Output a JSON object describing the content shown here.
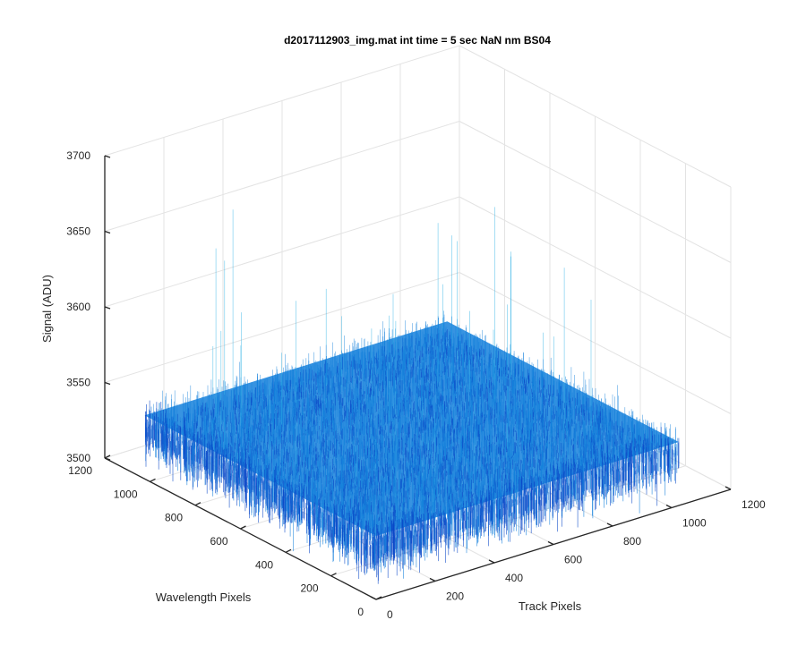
{
  "chart_data": {
    "type": "surface",
    "title": "d2017112903_img.mat int time = 5 sec  NaN nm BS04",
    "xlabel": "Track Pixels",
    "ylabel": "Wavelength Pixels",
    "zlabel": "Signal (ADU)",
    "xlim": [
      0,
      1200
    ],
    "ylim": [
      0,
      1200
    ],
    "zlim": [
      3500,
      3700
    ],
    "x_ticks": [
      "0",
      "200",
      "400",
      "600",
      "800",
      "1000",
      "1200"
    ],
    "y_ticks": [
      "0",
      "200",
      "400",
      "600",
      "800",
      "1000",
      "1200"
    ],
    "z_ticks": [
      "3500",
      "3550",
      "3600",
      "3650",
      "3700"
    ],
    "data_extent": {
      "x": [
        0,
        1024
      ],
      "y": [
        0,
        1024
      ]
    },
    "surface": {
      "mean_signal": 3542,
      "noise_sigma": 6,
      "min_signal": 3520,
      "max_signal": 3665,
      "colormap": "parula"
    },
    "grid": true,
    "colors": {
      "surface_dark": "#0a48c8",
      "surface_mid": "#1480dc",
      "surface_light": "#2cb0e6",
      "gridline": "#e3e3e3",
      "axis": "#262626"
    }
  }
}
